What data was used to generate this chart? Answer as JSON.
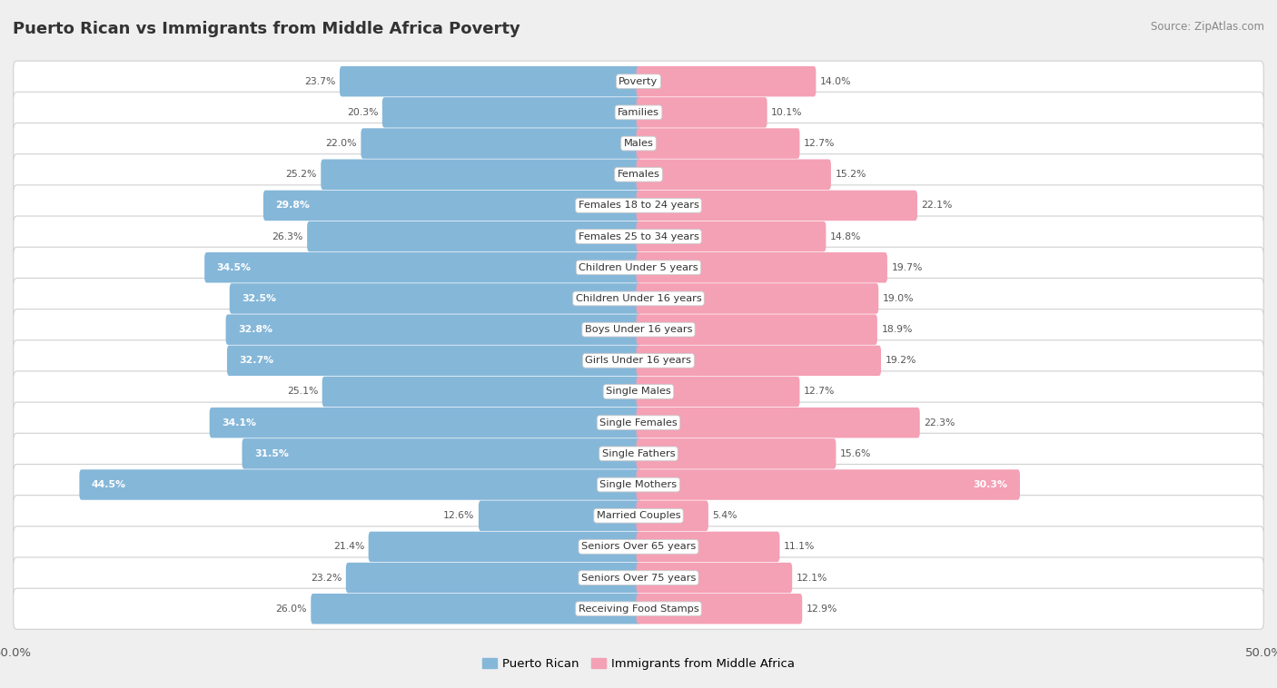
{
  "title": "Puerto Rican vs Immigrants from Middle Africa Poverty",
  "source": "Source: ZipAtlas.com",
  "categories": [
    "Poverty",
    "Families",
    "Males",
    "Females",
    "Females 18 to 24 years",
    "Females 25 to 34 years",
    "Children Under 5 years",
    "Children Under 16 years",
    "Boys Under 16 years",
    "Girls Under 16 years",
    "Single Males",
    "Single Females",
    "Single Fathers",
    "Single Mothers",
    "Married Couples",
    "Seniors Over 65 years",
    "Seniors Over 75 years",
    "Receiving Food Stamps"
  ],
  "puerto_rican": [
    23.7,
    20.3,
    22.0,
    25.2,
    29.8,
    26.3,
    34.5,
    32.5,
    32.8,
    32.7,
    25.1,
    34.1,
    31.5,
    44.5,
    12.6,
    21.4,
    23.2,
    26.0
  ],
  "middle_africa": [
    14.0,
    10.1,
    12.7,
    15.2,
    22.1,
    14.8,
    19.7,
    19.0,
    18.9,
    19.2,
    12.7,
    22.3,
    15.6,
    30.3,
    5.4,
    11.1,
    12.1,
    12.9
  ],
  "blue_color": "#85b7d9",
  "pink_color": "#f4a0b5",
  "bg_color": "#efefef",
  "row_color": "#ffffff",
  "axis_limit": 50.0,
  "legend_blue": "Puerto Rican",
  "legend_pink": "Immigrants from Middle Africa",
  "label_white_threshold_pr": 28.0,
  "label_white_threshold_ma": 28.0
}
